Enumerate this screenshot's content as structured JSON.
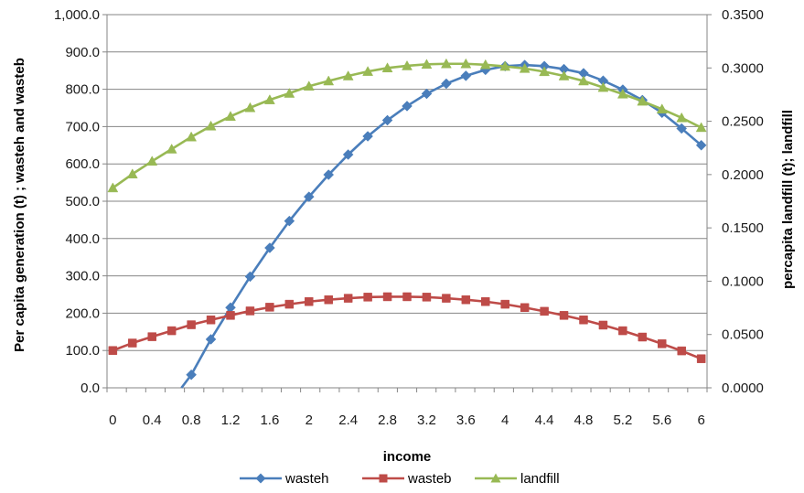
{
  "chart_data": {
    "type": "line",
    "title": "",
    "xlabel": "income",
    "ylabel_left": "Per capita generation (t) ; wasteh and wasteb",
    "ylabel_right": "percapita landfill (t); landfill",
    "x": [
      0,
      0.2,
      0.4,
      0.6,
      0.8,
      1.0,
      1.2,
      1.4,
      1.6,
      1.8,
      2.0,
      2.2,
      2.4,
      2.6,
      2.8,
      3.0,
      3.2,
      3.4,
      3.6,
      3.8,
      4.0,
      4.2,
      4.4,
      4.6,
      4.8,
      5.0,
      5.2,
      5.4,
      5.6,
      5.8,
      6.0
    ],
    "x_tick_labels": [
      "0",
      "0.4",
      "0.8",
      "1.2",
      "1.6",
      "2",
      "2.4",
      "2.8",
      "3.2",
      "3.6",
      "4",
      "4.4",
      "4.8",
      "5.2",
      "5.6",
      "6"
    ],
    "y_left_ticks": [
      "0.0",
      "100.0",
      "200.0",
      "300.0",
      "400.0",
      "500.0",
      "600.0",
      "700.0",
      "800.0",
      "900.0",
      "1,000.0"
    ],
    "y_right_ticks": [
      "0.0000",
      "0.0500",
      "0.1000",
      "0.1500",
      "0.2000",
      "0.2500",
      "0.3000",
      "0.3500"
    ],
    "ylim_left": [
      0,
      1000
    ],
    "ylim_right": [
      0,
      0.35
    ],
    "grid": true,
    "legend_position": "bottom",
    "series": [
      {
        "name": "wasteh",
        "axis": "left",
        "color": "#4a7ebb",
        "marker": "diamond",
        "values": [
          null,
          null,
          null,
          null,
          35,
          130,
          215,
          298,
          375,
          447,
          512,
          571,
          625,
          674,
          717,
          755,
          788,
          815,
          836,
          852,
          862,
          865,
          862,
          854,
          843,
          823,
          799,
          771,
          737,
          695,
          650
        ]
      },
      {
        "name": "wasteb",
        "axis": "left",
        "color": "#be4b48",
        "marker": "square",
        "values": [
          100,
          120,
          137,
          153,
          169,
          182,
          194,
          206,
          216,
          224,
          231,
          236,
          240,
          243,
          244,
          244,
          243,
          240,
          236,
          231,
          224,
          215,
          205,
          194,
          182,
          168,
          153,
          136,
          118,
          99,
          78
        ]
      },
      {
        "name": "landfill",
        "axis": "right",
        "color": "#98b954",
        "marker": "triangle",
        "values": [
          0.1875,
          0.2005,
          0.2125,
          0.2239,
          0.2353,
          0.2455,
          0.2546,
          0.2627,
          0.2701,
          0.2762,
          0.2829,
          0.2878,
          0.2925,
          0.2967,
          0.3,
          0.302,
          0.3034,
          0.3039,
          0.3039,
          0.303,
          0.3015,
          0.2995,
          0.2965,
          0.2925,
          0.2878,
          0.2817,
          0.2755,
          0.2688,
          0.2614,
          0.2532,
          0.2441
        ]
      }
    ]
  }
}
